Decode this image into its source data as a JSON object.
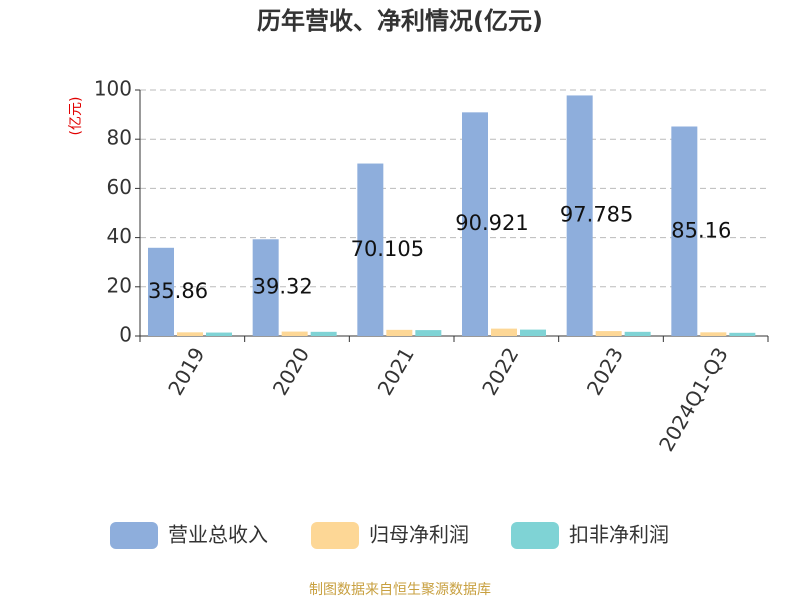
{
  "chart_data": {
    "type": "bar",
    "title": "历年营收、净利情况(亿元)",
    "y_label": "(亿元)",
    "categories": [
      "2019",
      "2020",
      "2021",
      "2022",
      "2023",
      "2024Q1-Q3"
    ],
    "series": [
      {
        "name": "营业总收入",
        "color": "#8eaedc",
        "values": [
          35.86,
          39.32,
          70.105,
          90.921,
          97.785,
          85.16
        ]
      },
      {
        "name": "归母净利润",
        "color": "#fdd796",
        "values": [
          1.5,
          1.8,
          2.5,
          3.0,
          2.0,
          1.5
        ]
      },
      {
        "name": "扣非净利润",
        "color": "#7fd3d5",
        "values": [
          1.4,
          1.7,
          2.4,
          2.6,
          1.7,
          1.3
        ]
      }
    ],
    "labeled_series": [
      0
    ],
    "ylim": [
      0,
      100
    ],
    "yticks": [
      0,
      20,
      40,
      60,
      80,
      100
    ],
    "grid": true,
    "legend": "bottom",
    "source": "制图数据来自恒生聚源数据库"
  }
}
